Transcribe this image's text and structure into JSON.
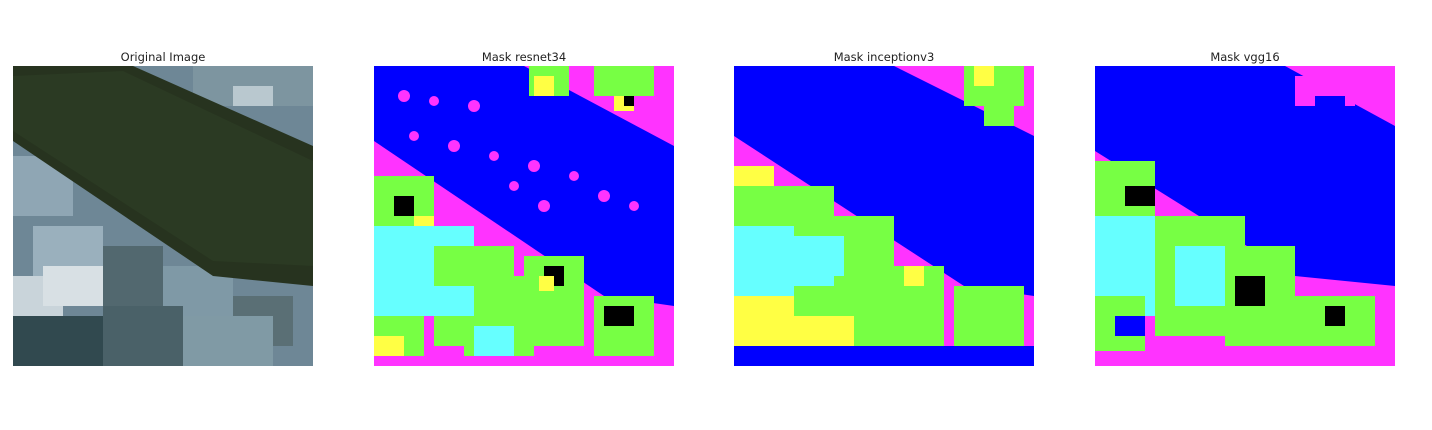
{
  "figure": {
    "panels": [
      {
        "id": "original",
        "title": "Original Image"
      },
      {
        "id": "resnet34",
        "title": "Mask resnet34"
      },
      {
        "id": "inceptionv3",
        "title": "Mask inceptionv3"
      },
      {
        "id": "vgg16",
        "title": "Mask vgg16"
      }
    ]
  },
  "colors": {
    "water": "#0000ff",
    "urban": "#ff33ff",
    "agriculture": "#77ff44",
    "rangeland": "#66ffff",
    "barren": "#ffff44",
    "unknown": "#000000",
    "satellite_river": "#27331f",
    "satellite_land": "#6e8796"
  }
}
